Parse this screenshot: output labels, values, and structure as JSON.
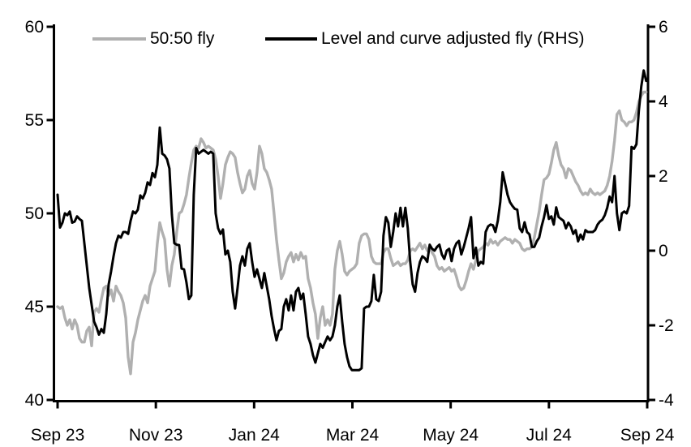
{
  "chart_data": {
    "type": "line",
    "title": "",
    "x_axis": {
      "unit": "months_since_sep_2023",
      "tick_positions": [
        0,
        2,
        4,
        6,
        8,
        10,
        12
      ],
      "tick_labels": [
        "Sep 23",
        "Nov 23",
        "Jan 24",
        "Mar 24",
        "May 24",
        "Jul 24",
        "Sep 24"
      ]
    },
    "left_axis": {
      "range": [
        40,
        60
      ],
      "ticks": [
        60,
        55,
        50,
        45,
        40
      ]
    },
    "right_axis": {
      "range": [
        -4,
        6
      ],
      "ticks": [
        6,
        4,
        2,
        0,
        -2,
        -4
      ]
    },
    "grid": "off",
    "legend_position": "top-inside",
    "x_start": 0,
    "x_step": 0.0495,
    "series": [
      {
        "name": "50:50 fly",
        "axis": "left",
        "color": "#b0b0b0",
        "values": [
          45.0,
          44.9,
          45.0,
          44.4,
          44.0,
          44.3,
          43.8,
          44.3,
          44.0,
          43.3,
          43.1,
          43.1,
          43.7,
          43.9,
          42.9,
          44.7,
          44.9,
          44.7,
          45.4,
          46.0,
          46.1,
          45.6,
          45.9,
          45.3,
          46.1,
          45.8,
          45.6,
          45.2,
          44.4,
          42.3,
          41.4,
          43.1,
          43.6,
          44.3,
          44.8,
          45.3,
          45.6,
          45.2,
          46.1,
          46.5,
          46.9,
          48.4,
          49.5,
          49.0,
          48.6,
          47.0,
          46.1,
          47.2,
          47.8,
          49.0,
          50.0,
          50.1,
          50.5,
          51.0,
          51.9,
          52.7,
          53.4,
          53.6,
          53.5,
          54.0,
          53.8,
          53.5,
          53.6,
          53.5,
          53.4,
          52.9,
          52.0,
          50.8,
          51.6,
          52.6,
          53.0,
          53.3,
          53.2,
          53.0,
          52.2,
          51.6,
          51.1,
          51.3,
          52.0,
          52.3,
          51.6,
          51.3,
          52.2,
          53.6,
          53.2,
          52.4,
          52.2,
          51.8,
          51.3,
          50.0,
          48.6,
          47.5,
          46.5,
          46.8,
          47.4,
          47.7,
          47.9,
          47.4,
          47.8,
          47.5,
          47.9,
          47.6,
          47.7,
          46.5,
          46.0,
          45.2,
          44.6,
          43.3,
          44.4,
          45.0,
          44.0,
          44.3,
          44.0,
          44.6,
          47.0,
          48.0,
          48.5,
          47.8,
          46.9,
          46.7,
          46.9,
          47.0,
          47.1,
          47.3,
          48.4,
          48.8,
          48.9,
          48.9,
          48.6,
          47.7,
          47.4,
          47.3,
          47.3,
          47.3,
          47.9,
          48.1,
          48.1,
          47.6,
          47.2,
          47.3,
          47.4,
          47.2,
          47.3,
          47.3,
          47.5,
          48.0,
          48.1,
          48.0,
          48.2,
          48.4,
          48.1,
          48.3,
          48.0,
          48.2,
          47.9,
          47.7,
          47.2,
          47.0,
          47.1,
          46.9,
          47.0,
          47.1,
          46.9,
          47.0,
          46.6,
          46.1,
          45.9,
          46.0,
          46.4,
          46.9,
          47.3,
          47.0,
          47.5,
          48.0,
          48.1,
          48.2,
          48.4,
          48.3,
          48.6,
          48.4,
          48.5,
          48.3,
          48.5,
          48.6,
          48.7,
          48.6,
          48.6,
          48.4,
          48.6,
          48.5,
          48.4,
          48.1,
          48.0,
          48.1,
          48.1,
          48.2,
          48.7,
          49.4,
          50.1,
          51.0,
          51.8,
          51.9,
          52.1,
          52.7,
          53.4,
          53.8,
          53.1,
          52.6,
          52.4,
          51.9,
          52.4,
          52.3,
          52.0,
          51.7,
          51.5,
          51.2,
          51.0,
          51.1,
          51.0,
          51.3,
          51.1,
          51.0,
          51.1,
          51.0,
          51.1,
          51.2,
          51.5,
          52.0,
          52.8,
          53.9,
          55.3,
          55.5,
          55.0,
          54.9,
          54.7,
          54.9,
          54.9,
          55.0,
          55.4,
          56.0,
          56.3,
          56.5,
          56.5
        ]
      },
      {
        "name": "Level and curve adjusted fly (RHS)",
        "axis": "right",
        "color": "#000000",
        "values": [
          1.5,
          0.62,
          0.75,
          1.0,
          0.95,
          1.05,
          0.75,
          0.78,
          0.92,
          0.85,
          0.8,
          0.2,
          -0.4,
          -1.0,
          -1.45,
          -1.9,
          -2.05,
          -2.25,
          -2.1,
          -2.2,
          -1.7,
          -0.9,
          -0.55,
          -0.15,
          0.2,
          0.4,
          0.35,
          0.5,
          0.5,
          0.45,
          0.8,
          1.05,
          1.0,
          1.1,
          1.48,
          1.4,
          1.55,
          1.83,
          1.76,
          2.08,
          1.97,
          2.3,
          3.3,
          2.6,
          2.55,
          2.45,
          2.2,
          0.97,
          0.2,
          0.16,
          0.15,
          -0.48,
          -0.5,
          -0.85,
          -1.3,
          -1.2,
          1.5,
          2.75,
          2.6,
          2.65,
          2.7,
          2.65,
          2.6,
          2.65,
          2.6,
          1.0,
          0.6,
          0.45,
          0.57,
          -0.1,
          0.0,
          -0.3,
          -1.1,
          -1.55,
          -1.0,
          -0.4,
          -0.15,
          -0.4,
          0.05,
          0.2,
          -0.3,
          -0.7,
          -0.5,
          -0.75,
          -1.0,
          -0.6,
          -0.95,
          -1.3,
          -1.75,
          -2.1,
          -2.4,
          -2.15,
          -2.1,
          -1.5,
          -1.3,
          -1.6,
          -1.2,
          -1.6,
          -1.1,
          -1.0,
          -1.3,
          -1.15,
          -1.7,
          -2.3,
          -2.5,
          -2.8,
          -3.0,
          -2.75,
          -2.5,
          -2.6,
          -2.45,
          -2.3,
          -2.4,
          -2.3,
          -2.0,
          -1.5,
          -1.2,
          -1.9,
          -2.5,
          -2.85,
          -3.1,
          -3.2,
          -3.2,
          -3.2,
          -3.2,
          -3.15,
          -1.55,
          -1.5,
          -1.5,
          -1.35,
          -0.65,
          -1.3,
          -1.35,
          -1.1,
          0.4,
          0.9,
          0.75,
          0.1,
          0.5,
          1.0,
          0.65,
          1.15,
          0.65,
          1.15,
          0.6,
          -0.3,
          -0.9,
          -1.1,
          -0.6,
          -0.3,
          -0.15,
          -0.2,
          -0.3,
          0.16,
          0.05,
          0.0,
          0.1,
          0.16,
          -0.1,
          -0.22,
          0.0,
          0.05,
          -0.28,
          0.05,
          0.2,
          0.26,
          -0.1,
          0.1,
          0.35,
          0.6,
          0.9,
          -0.2,
          0.08,
          -0.4,
          -0.3,
          -0.35,
          0.5,
          0.65,
          0.7,
          0.68,
          0.5,
          0.8,
          1.3,
          2.1,
          1.8,
          1.5,
          1.3,
          1.2,
          1.12,
          1.1,
          0.6,
          0.5,
          0.76,
          0.5,
          0.44,
          0.1,
          0.1,
          0.25,
          0.35,
          0.65,
          0.9,
          1.22,
          0.85,
          0.92,
          0.7,
          1.16,
          0.9,
          0.85,
          0.8,
          0.6,
          0.75,
          0.65,
          0.45,
          0.55,
          0.25,
          0.43,
          0.3,
          0.55,
          0.5,
          0.5,
          0.5,
          0.55,
          0.7,
          0.78,
          0.83,
          0.95,
          1.15,
          1.45,
          1.3,
          2.0,
          1.0,
          0.55,
          1.0,
          1.05,
          1.0,
          1.2,
          2.78,
          2.73,
          2.85,
          3.75,
          4.4,
          4.83,
          4.55
        ]
      }
    ]
  }
}
